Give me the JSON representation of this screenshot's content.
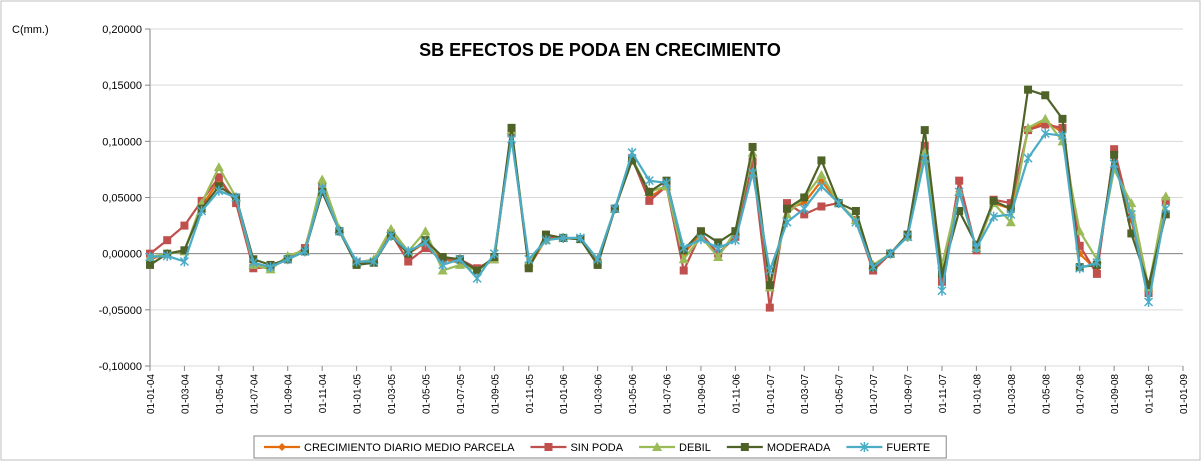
{
  "chart_data": {
    "type": "line",
    "title": "SB EFECTOS DE PODA EN CRECIMIENTO",
    "y_label": "C(mm.)",
    "x": [
      "01-01-04",
      "01-02-04",
      "01-03-04",
      "01-04-04",
      "01-05-04",
      "01-06-04",
      "01-07-04",
      "01-08-04",
      "01-09-04",
      "01-10-04",
      "01-11-04",
      "01-12-04",
      "01-01-05",
      "01-02-05",
      "01-03-05",
      "01-04-05",
      "01-05-05",
      "01-06-05",
      "01-07-05",
      "01-08-05",
      "01-09-05",
      "01-10-05",
      "01-11-05",
      "01-12-05",
      "01-01-06",
      "01-02-06",
      "01-03-06",
      "01-04-06",
      "01-05-06",
      "01-06-06",
      "01-07-06",
      "01-08-06",
      "01-09-06",
      "01-10-06",
      "01-11-06",
      "01-12-06",
      "01-01-07",
      "01-02-07",
      "01-03-07",
      "01-04-07",
      "01-05-07",
      "01-06-07",
      "01-07-07",
      "01-08-07",
      "01-09-07",
      "01-10-07",
      "01-11-07",
      "01-12-07",
      "01-01-08",
      "01-02-08",
      "01-03-08",
      "01-04-08",
      "01-05-08",
      "01-06-08",
      "01-07-08",
      "01-08-08",
      "01-09-08",
      "01-10-08",
      "01-11-08",
      "01-12-08"
    ],
    "series": [
      {
        "name": "CRECIMIENTO DIARIO MEDIO PARCELA",
        "color": "#e46c0a",
        "marker": "diamond",
        "values": [
          -0.005,
          0.0,
          0.003,
          0.042,
          0.065,
          0.048,
          -0.01,
          -0.012,
          -0.005,
          0.003,
          0.06,
          0.02,
          -0.008,
          -0.007,
          0.018,
          0.0,
          0.01,
          -0.005,
          -0.008,
          -0.013,
          -0.005,
          0.11,
          -0.012,
          0.013,
          0.014,
          0.013,
          -0.008,
          0.04,
          0.085,
          0.05,
          0.06,
          0.0,
          0.018,
          0.0,
          0.015,
          0.085,
          -0.03,
          0.04,
          0.045,
          0.065,
          0.045,
          0.03,
          -0.015,
          0.0,
          0.016,
          0.095,
          -0.022,
          0.055,
          0.005,
          0.045,
          0.04,
          0.11,
          0.118,
          0.108,
          0.0,
          -0.015,
          0.09,
          0.03,
          -0.035,
          0.048
        ]
      },
      {
        "name": "SIN PODA",
        "color": "#c0504d",
        "marker": "square",
        "values": [
          0.0,
          0.012,
          0.025,
          0.047,
          0.068,
          0.045,
          -0.013,
          -0.012,
          -0.005,
          0.005,
          0.06,
          0.02,
          -0.008,
          -0.008,
          0.018,
          -0.007,
          0.005,
          -0.005,
          -0.005,
          -0.013,
          -0.005,
          0.107,
          -0.012,
          0.015,
          0.014,
          0.013,
          -0.008,
          0.04,
          0.085,
          0.047,
          0.06,
          -0.015,
          0.018,
          0.0,
          0.015,
          0.082,
          -0.048,
          0.045,
          0.035,
          0.042,
          0.045,
          0.03,
          -0.015,
          0.0,
          0.016,
          0.096,
          -0.025,
          0.065,
          0.003,
          0.048,
          0.045,
          0.11,
          0.115,
          0.112,
          0.007,
          -0.018,
          0.093,
          0.032,
          -0.035,
          0.047
        ]
      },
      {
        "name": "DEBIL",
        "color": "#9bbb59",
        "marker": "triangle",
        "values": [
          -0.003,
          0.0,
          0.002,
          0.045,
          0.077,
          0.05,
          -0.01,
          -0.014,
          -0.002,
          0.003,
          0.066,
          0.022,
          -0.008,
          -0.005,
          0.022,
          0.002,
          0.02,
          -0.015,
          -0.01,
          -0.015,
          -0.005,
          0.11,
          -0.008,
          0.012,
          0.014,
          0.013,
          -0.005,
          0.04,
          0.085,
          0.055,
          0.06,
          -0.005,
          0.015,
          -0.003,
          0.02,
          0.09,
          -0.03,
          0.035,
          0.05,
          0.07,
          0.045,
          0.03,
          -0.01,
          0.0,
          0.015,
          0.09,
          -0.01,
          0.055,
          0.005,
          0.045,
          0.028,
          0.112,
          0.12,
          0.1,
          0.02,
          -0.005,
          0.075,
          0.045,
          -0.03,
          0.051
        ]
      },
      {
        "name": "MODERADA",
        "color": "#4f6228",
        "marker": "square",
        "values": [
          -0.01,
          0.0,
          0.003,
          0.04,
          0.06,
          0.05,
          -0.005,
          -0.01,
          -0.005,
          0.002,
          0.055,
          0.02,
          -0.01,
          -0.008,
          0.016,
          0.0,
          0.012,
          -0.003,
          -0.005,
          -0.015,
          -0.003,
          0.112,
          -0.013,
          0.017,
          0.014,
          0.013,
          -0.01,
          0.04,
          0.083,
          0.055,
          0.065,
          0.003,
          0.02,
          0.01,
          0.02,
          0.095,
          -0.028,
          0.04,
          0.05,
          0.083,
          0.045,
          0.038,
          -0.012,
          0.0,
          0.017,
          0.11,
          -0.018,
          0.038,
          0.008,
          0.047,
          0.04,
          0.146,
          0.141,
          0.12,
          -0.012,
          -0.01,
          0.088,
          0.018,
          -0.028,
          0.035
        ]
      },
      {
        "name": "FUERTE",
        "color": "#4bacc6",
        "marker": "star",
        "values": [
          -0.003,
          -0.002,
          -0.007,
          0.038,
          0.056,
          0.05,
          -0.008,
          -0.012,
          -0.005,
          0.002,
          0.058,
          0.02,
          -0.007,
          -0.007,
          0.016,
          0.002,
          0.01,
          -0.01,
          -0.005,
          -0.022,
          0.0,
          0.102,
          -0.005,
          0.012,
          0.014,
          0.014,
          -0.005,
          0.04,
          0.09,
          0.065,
          0.063,
          0.005,
          0.013,
          0.005,
          0.012,
          0.072,
          -0.015,
          0.028,
          0.04,
          0.06,
          0.045,
          0.028,
          -0.012,
          0.0,
          0.015,
          0.085,
          -0.033,
          0.055,
          0.005,
          0.033,
          0.035,
          0.085,
          0.107,
          0.105,
          -0.013,
          -0.008,
          0.08,
          0.035,
          -0.043,
          0.04
        ]
      }
    ],
    "xlim": [
      "01-01-04",
      "01-01-09"
    ],
    "xticks": [
      "01-01-04",
      "01-03-04",
      "01-05-04",
      "01-07-04",
      "01-09-04",
      "01-11-04",
      "01-01-05",
      "01-03-05",
      "01-05-05",
      "01-07-05",
      "01-09-05",
      "01-11-05",
      "01-01-06",
      "01-03-06",
      "01-05-06",
      "01-07-06",
      "01-09-06",
      "01-11-06",
      "01-01-07",
      "01-03-07",
      "01-05-07",
      "01-07-07",
      "01-09-07",
      "01-11-07",
      "01-01-08",
      "01-03-08",
      "01-05-08",
      "01-07-08",
      "01-09-08",
      "01-11-08",
      "01-01-09"
    ],
    "ylim": [
      -0.1,
      0.2
    ],
    "yticks": [
      {
        "value": -0.1,
        "label": "-0,10000"
      },
      {
        "value": -0.05,
        "label": "-0,05000"
      },
      {
        "value": 0,
        "label": "0,00000"
      },
      {
        "value": 0.05,
        "label": "0,05000"
      },
      {
        "value": 0.1,
        "label": "0,10000"
      },
      {
        "value": 0.15,
        "label": "0,15000"
      },
      {
        "value": 0.2,
        "label": "0,20000"
      }
    ],
    "grid": true,
    "legend": "bottom"
  }
}
